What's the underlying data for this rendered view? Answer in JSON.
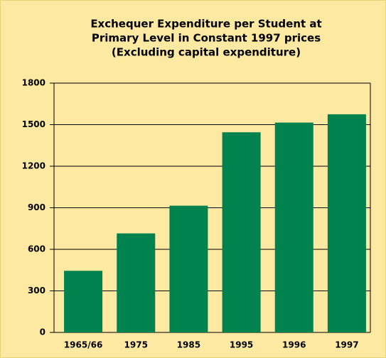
{
  "chart_data": {
    "type": "bar",
    "title": [
      "Exchequer Expenditure per Student at",
      "Primary Level in Constant 1997 prices",
      "(Excluding capital expenditure)"
    ],
    "categories": [
      "1965/66",
      "1975",
      "1985",
      "1995",
      "1996",
      "1997"
    ],
    "values": [
      445,
      715,
      915,
      1445,
      1515,
      1575
    ],
    "color": "#00824f",
    "ylim": [
      0,
      1800
    ],
    "yticks": [
      0,
      300,
      600,
      900,
      1200,
      1500,
      1800
    ],
    "grid": true
  }
}
